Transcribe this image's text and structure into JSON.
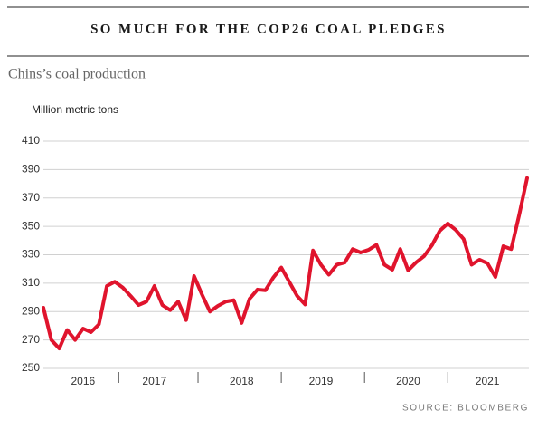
{
  "chart_data": {
    "type": "line",
    "title": "SO MUCH FOR THE COP26 COAL PLEDGES",
    "subtitle": "Chins’s coal production",
    "y_label": "Million metric tons",
    "source": "SOURCE: BLOOMBERG",
    "categories": [
      null,
      null,
      null,
      null,
      null,
      "2016",
      null,
      null,
      null,
      null,
      null,
      null,
      null,
      null,
      "2017",
      null,
      null,
      null,
      null,
      null,
      null,
      null,
      null,
      null,
      null,
      "2018",
      null,
      null,
      null,
      null,
      null,
      null,
      null,
      null,
      null,
      "2019",
      null,
      null,
      null,
      null,
      null,
      null,
      null,
      null,
      null,
      null,
      "2020",
      null,
      null,
      null,
      null,
      null,
      null,
      null,
      null,
      null,
      "2021",
      null,
      null,
      null,
      null,
      null
    ],
    "series": [
      {
        "name": "Coal production",
        "color": "#e0142d",
        "values": [
          292.7,
          270,
          264,
          277,
          270,
          278,
          275.5,
          281,
          308,
          311,
          307,
          301,
          294.6,
          297,
          308,
          294.6,
          291,
          297,
          284,
          315,
          302,
          290,
          294,
          297,
          298,
          282,
          299,
          305.5,
          305,
          314,
          321,
          311,
          301,
          295,
          333,
          323,
          316,
          323,
          324.5,
          334,
          331.6,
          333.5,
          337,
          323,
          319.5,
          334,
          319,
          324.6,
          329,
          336.7,
          347,
          352,
          347.5,
          341,
          323,
          326.5,
          324,
          314.4,
          336,
          334,
          358,
          384
        ]
      }
    ],
    "ylim": [
      250,
      410
    ],
    "yticks": [
      250,
      270,
      290,
      310,
      330,
      350,
      370,
      390,
      410
    ],
    "grid": true
  }
}
